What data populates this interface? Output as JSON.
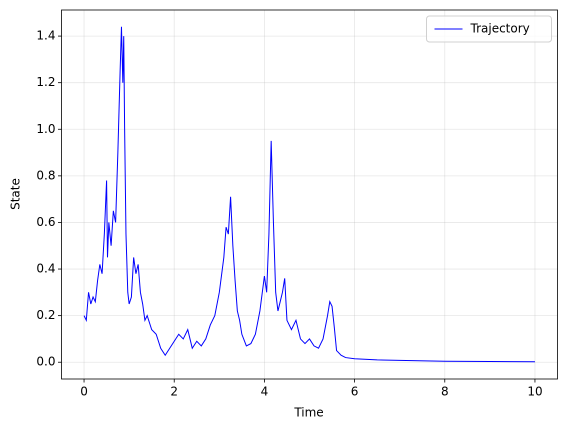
{
  "chart_data": {
    "type": "line",
    "xlabel": "Time",
    "ylabel": "State",
    "x": [
      0.0,
      0.05,
      0.1,
      0.15,
      0.2,
      0.25,
      0.3,
      0.35,
      0.4,
      0.45,
      0.5,
      0.52,
      0.55,
      0.6,
      0.65,
      0.7,
      0.75,
      0.8,
      0.83,
      0.86,
      0.88,
      0.9,
      0.93,
      0.97,
      1.0,
      1.05,
      1.1,
      1.15,
      1.2,
      1.25,
      1.3,
      1.35,
      1.4,
      1.5,
      1.6,
      1.7,
      1.8,
      1.9,
      2.0,
      2.1,
      2.2,
      2.3,
      2.4,
      2.5,
      2.6,
      2.7,
      2.8,
      2.9,
      3.0,
      3.1,
      3.15,
      3.2,
      3.25,
      3.3,
      3.35,
      3.4,
      3.45,
      3.5,
      3.6,
      3.7,
      3.8,
      3.9,
      4.0,
      4.05,
      4.1,
      4.15,
      4.2,
      4.25,
      4.3,
      4.4,
      4.45,
      4.5,
      4.6,
      4.7,
      4.8,
      4.9,
      5.0,
      5.1,
      5.2,
      5.3,
      5.4,
      5.45,
      5.5,
      5.55,
      5.6,
      5.7,
      5.8,
      6.0,
      6.5,
      7.0,
      8.0,
      9.0,
      10.0
    ],
    "series": [
      {
        "name": "Trajectory",
        "color": "#0000ff",
        "values": [
          0.2,
          0.18,
          0.3,
          0.25,
          0.28,
          0.26,
          0.35,
          0.42,
          0.38,
          0.55,
          0.78,
          0.45,
          0.6,
          0.5,
          0.65,
          0.6,
          0.9,
          1.25,
          1.44,
          1.2,
          1.4,
          1.0,
          0.55,
          0.3,
          0.25,
          0.28,
          0.45,
          0.38,
          0.42,
          0.3,
          0.25,
          0.18,
          0.2,
          0.14,
          0.12,
          0.06,
          0.03,
          0.06,
          0.09,
          0.12,
          0.1,
          0.14,
          0.06,
          0.09,
          0.07,
          0.1,
          0.16,
          0.2,
          0.3,
          0.45,
          0.58,
          0.55,
          0.71,
          0.5,
          0.35,
          0.22,
          0.18,
          0.12,
          0.07,
          0.08,
          0.12,
          0.22,
          0.37,
          0.3,
          0.55,
          0.95,
          0.6,
          0.3,
          0.22,
          0.3,
          0.36,
          0.18,
          0.14,
          0.18,
          0.1,
          0.08,
          0.1,
          0.07,
          0.06,
          0.1,
          0.2,
          0.26,
          0.24,
          0.15,
          0.05,
          0.03,
          0.02,
          0.015,
          0.01,
          0.008,
          0.004,
          0.003,
          0.002
        ]
      }
    ],
    "xlim": [
      -0.5,
      10.5
    ],
    "xticks": [
      0,
      2,
      4,
      6,
      8,
      10
    ],
    "ylim": [
      -0.072,
      1.512
    ],
    "yticks": [
      {
        "value": 0,
        "label": "0.0"
      },
      {
        "value": 0.2,
        "label": "0.2"
      },
      {
        "value": 0.4,
        "label": "0.4"
      },
      {
        "value": 0.6,
        "label": "0.6"
      },
      {
        "value": 0.8,
        "label": "0.8"
      },
      {
        "value": 1.0,
        "label": "1.0"
      },
      {
        "value": 1.2,
        "label": "1.2"
      },
      {
        "value": 1.4,
        "label": "1.4"
      }
    ],
    "grid": true,
    "legend": "upper right"
  }
}
